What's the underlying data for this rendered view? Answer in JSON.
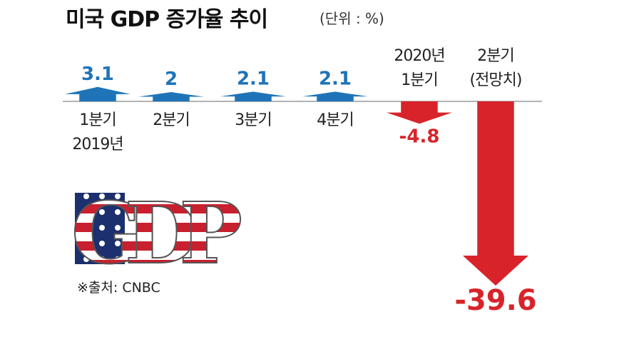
{
  "chart_data": {
    "type": "arrow-bar",
    "title": "미국 GDP 증가율 추이",
    "subtitle": "(단위 : %)",
    "categories": [
      "1분기\n2019년",
      "2분기",
      "3분기",
      "4분기",
      "2020년\n1분기",
      "2분기\n(전망치)"
    ],
    "values": [
      3.1,
      2,
      2.1,
      2.1,
      -4.8,
      -39.6
    ],
    "positive_color": "#1f74b8",
    "negative_color": "#d8232a",
    "logo_text": "GDP",
    "source": "※출처: CNBC"
  }
}
